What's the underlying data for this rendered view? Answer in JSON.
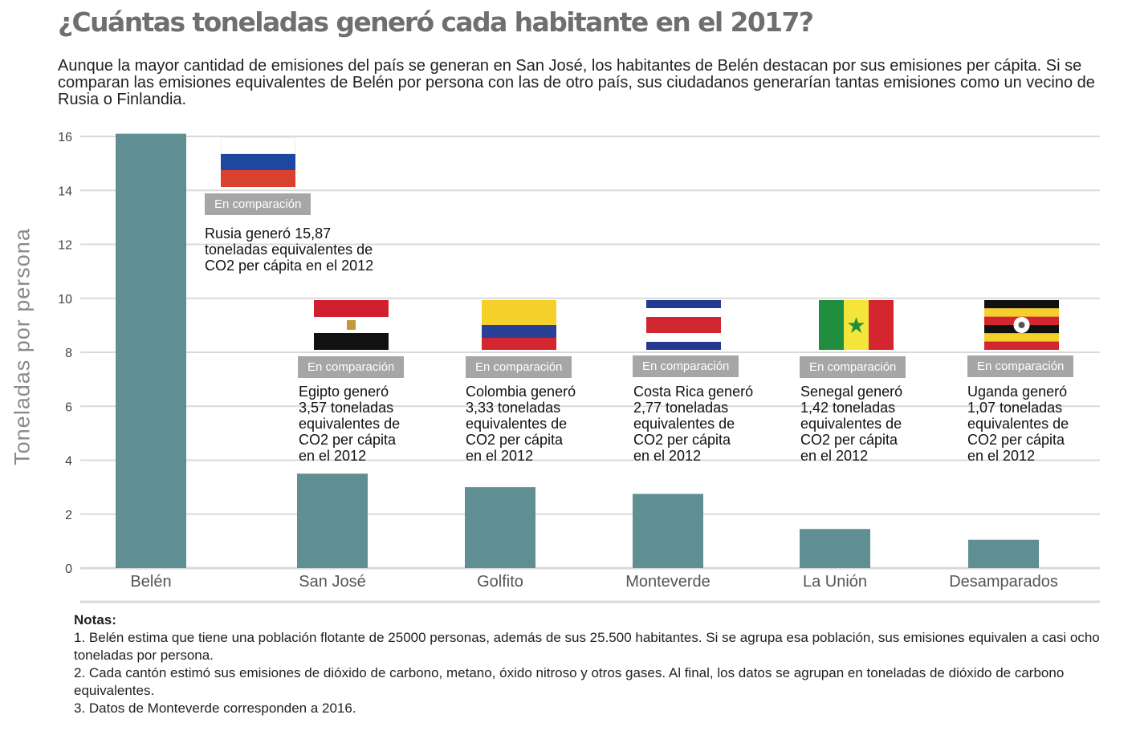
{
  "title": "¿Cuántas toneladas generó cada habitante en el 2017?",
  "subtitle": "Aunque la mayor cantidad de emisiones del país se generan en San José, los habitantes de Belén destacan por sus emisiones per cápita. Si se comparan las emisiones equivalentes de Belén por persona con las de otro país, sus ciudadanos generarían tantas emisiones como un vecino de Rusia o Finlandia.",
  "chart_data": {
    "type": "bar",
    "categories": [
      "Belén",
      "San José",
      "Golfito",
      "Monteverde",
      "La Unión",
      "Desamparados"
    ],
    "values": [
      16.1,
      3.5,
      3.0,
      2.75,
      1.45,
      1.05
    ],
    "ylabel": "Toneladas por persona",
    "ylim": [
      0,
      16
    ],
    "yticks": [
      0,
      2,
      4,
      6,
      8,
      10,
      12,
      14,
      16
    ],
    "grid": true,
    "bar_color": "#5f8e93",
    "grid_color": "#d9d9d9"
  },
  "comparison_badge": "En comparación",
  "comparisons": [
    {
      "country": "Rusia",
      "flag": "russia-flag",
      "text": [
        "Rusia generó 15,87",
        "toneladas equivalentes de",
        "CO2 per cápita en el 2012"
      ]
    },
    {
      "country": "Egipto",
      "flag": "egypt-flag",
      "text": [
        "Egipto generó",
        "3,57 toneladas",
        "equivalentes de",
        "CO2  per cápita",
        "en el 2012"
      ]
    },
    {
      "country": "Colombia",
      "flag": "colombia-flag",
      "text": [
        "Colombia generó",
        "3,33 toneladas",
        "equivalentes de",
        "CO2  per cápita",
        "en el 2012"
      ]
    },
    {
      "country": "Costa Rica",
      "flag": "costa-rica-flag",
      "text": [
        "Costa Rica generó",
        "2,77 toneladas",
        "equivalentes de",
        "CO2  per cápita",
        "en el 2012"
      ]
    },
    {
      "country": "Senegal",
      "flag": "senegal-flag",
      "text": [
        "Senegal generó",
        "1,42 toneladas",
        "equivalentes de",
        "CO2  per cápita",
        "en el 2012"
      ]
    },
    {
      "country": "Uganda",
      "flag": "uganda-flag",
      "text": [
        "Uganda generó",
        "1,07 toneladas",
        "equivalentes de",
        "CO2  per cápita",
        "en el 2012"
      ]
    }
  ],
  "notes": {
    "title": "Notas:",
    "items": [
      "1. Belén estima que tiene una población flotante de 25000 personas, además de sus 25.500 habitantes. Si se agrupa esa población, sus emisiones equivalen a casi ocho toneladas por persona.",
      "2. Cada cantón estimó sus emisiones de dióxido de carbono, metano, óxido nitroso y otros gases. Al final, los datos se agrupan en toneladas de dióxido de carbono equivalentes.",
      "3. Datos de Monteverde corresponden a 2016."
    ]
  }
}
